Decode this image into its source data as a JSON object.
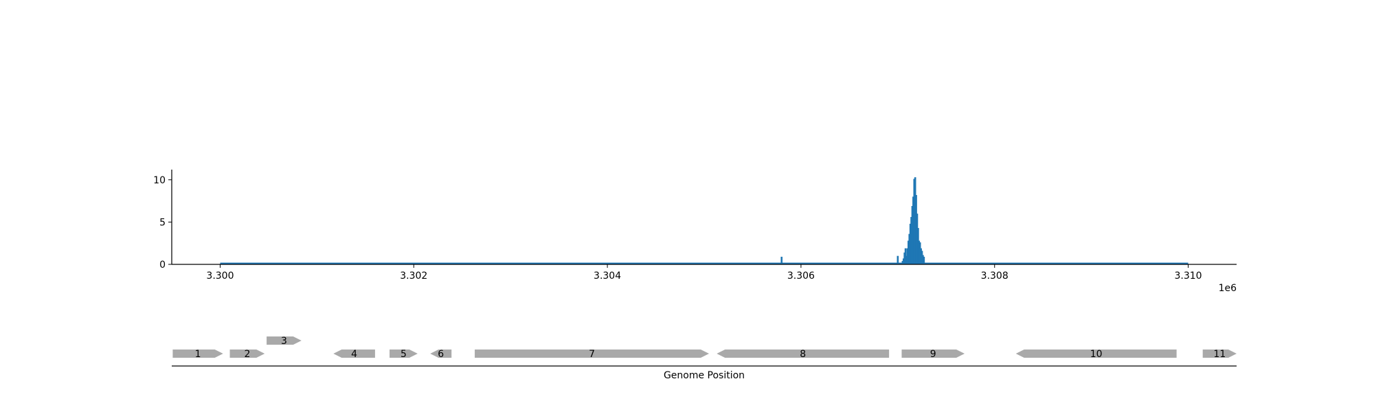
{
  "colors": {
    "coverage": "#1f77b4",
    "gene": "#a9a9a9",
    "axis": "#000000"
  },
  "chart_data": [
    {
      "type": "area",
      "x_offset_label": "1e6",
      "xlim": [
        3299.5,
        3310.5
      ],
      "ylim": [
        0,
        11.2
      ],
      "x_ticks": [
        {
          "value": 3300,
          "label": "3.300"
        },
        {
          "value": 3302,
          "label": "3.302"
        },
        {
          "value": 3304,
          "label": "3.304"
        },
        {
          "value": 3306,
          "label": "3.306"
        },
        {
          "value": 3308,
          "label": "3.308"
        },
        {
          "value": 3310,
          "label": "3.310"
        }
      ],
      "y_ticks": [
        {
          "value": 0,
          "label": "0"
        },
        {
          "value": 5,
          "label": "5"
        },
        {
          "value": 10,
          "label": "10"
        }
      ],
      "baseline": {
        "from": 3300.0,
        "to": 3310.0,
        "value": 0.12
      },
      "spikes": [
        {
          "x": 3305.8,
          "y": 0.9
        },
        {
          "x": 3307.0,
          "y": 1.0
        },
        {
          "x": 3307.05,
          "y": 0.4
        },
        {
          "x": 3307.06,
          "y": 0.7
        },
        {
          "x": 3307.07,
          "y": 1.4
        },
        {
          "x": 3307.08,
          "y": 1.9
        },
        {
          "x": 3307.09,
          "y": 1.0
        },
        {
          "x": 3307.1,
          "y": 1.9
        },
        {
          "x": 3307.11,
          "y": 2.8
        },
        {
          "x": 3307.12,
          "y": 3.6
        },
        {
          "x": 3307.13,
          "y": 4.8
        },
        {
          "x": 3307.14,
          "y": 5.6
        },
        {
          "x": 3307.15,
          "y": 6.9
        },
        {
          "x": 3307.16,
          "y": 8.0
        },
        {
          "x": 3307.17,
          "y": 10.1
        },
        {
          "x": 3307.18,
          "y": 10.3
        },
        {
          "x": 3307.19,
          "y": 8.2
        },
        {
          "x": 3307.2,
          "y": 6.0
        },
        {
          "x": 3307.21,
          "y": 4.3
        },
        {
          "x": 3307.22,
          "y": 2.8
        },
        {
          "x": 3307.23,
          "y": 2.6
        },
        {
          "x": 3307.24,
          "y": 1.9
        },
        {
          "x": 3307.25,
          "y": 1.6
        },
        {
          "x": 3307.26,
          "y": 1.1
        },
        {
          "x": 3307.27,
          "y": 0.9
        }
      ]
    },
    {
      "type": "gene_map",
      "xlabel": "Genome Position",
      "xlim": [
        3299.5,
        3310.5
      ],
      "genes": [
        {
          "label": "1",
          "start": 3299.51,
          "end": 3300.03,
          "strand": "+",
          "row": 0
        },
        {
          "label": "2",
          "start": 3300.1,
          "end": 3300.46,
          "strand": "+",
          "row": 0
        },
        {
          "label": "3",
          "start": 3300.48,
          "end": 3300.84,
          "strand": "+",
          "row": 1
        },
        {
          "label": "4",
          "start": 3301.17,
          "end": 3301.6,
          "strand": "-",
          "row": 0
        },
        {
          "label": "5",
          "start": 3301.75,
          "end": 3302.04,
          "strand": "+",
          "row": 0
        },
        {
          "label": "6",
          "start": 3302.17,
          "end": 3302.39,
          "strand": "-",
          "row": 0
        },
        {
          "label": "7",
          "start": 3302.63,
          "end": 3305.05,
          "strand": "+",
          "row": 0
        },
        {
          "label": "8",
          "start": 3305.13,
          "end": 3306.91,
          "strand": "-",
          "row": 0
        },
        {
          "label": "9",
          "start": 3307.04,
          "end": 3307.69,
          "strand": "+",
          "row": 0
        },
        {
          "label": "10",
          "start": 3308.22,
          "end": 3309.88,
          "strand": "-",
          "row": 0
        },
        {
          "label": "11",
          "start": 3310.15,
          "end": 3310.5,
          "strand": "+",
          "row": 0
        }
      ]
    }
  ]
}
